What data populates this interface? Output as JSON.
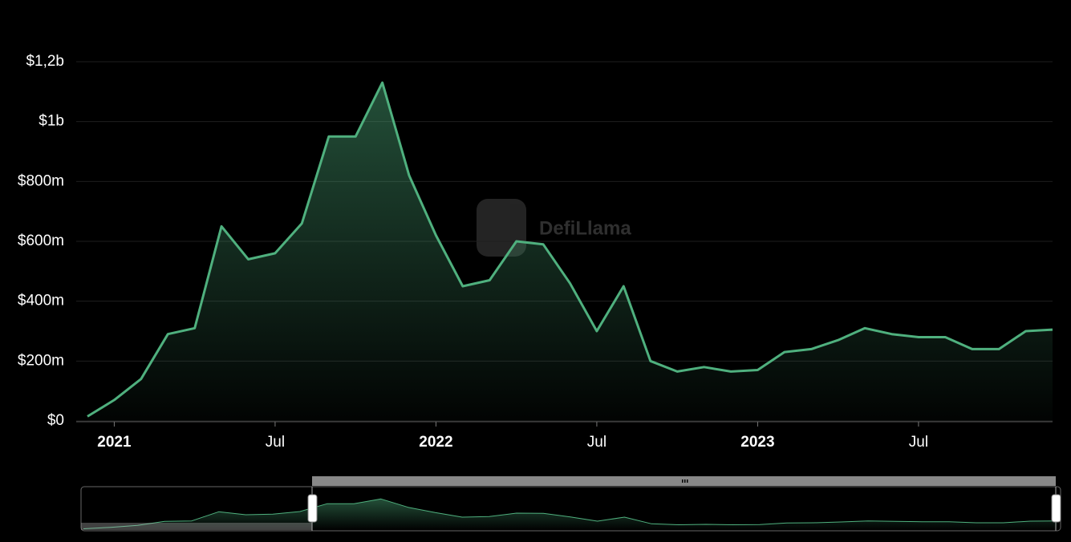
{
  "chart_data": {
    "type": "area",
    "watermark": "DefiLlama",
    "x": [
      "2020-12",
      "2021-01",
      "2021-02",
      "2021-03",
      "2021-04",
      "2021-05",
      "2021-06",
      "2021-07",
      "2021-08",
      "2021-09",
      "2021-10",
      "2021-11",
      "2021-12",
      "2022-01",
      "2022-02",
      "2022-03",
      "2022-04",
      "2022-05",
      "2022-06",
      "2022-07",
      "2022-08",
      "2022-09",
      "2022-10",
      "2022-11",
      "2022-12",
      "2023-01",
      "2023-02",
      "2023-03",
      "2023-04",
      "2023-05",
      "2023-06",
      "2023-07",
      "2023-08",
      "2023-09",
      "2023-10",
      "2023-11",
      "2023-12"
    ],
    "values": [
      15,
      70,
      140,
      290,
      310,
      650,
      540,
      560,
      660,
      950,
      950,
      1130,
      820,
      620,
      450,
      470,
      600,
      590,
      460,
      300,
      450,
      200,
      165,
      180,
      165,
      170,
      230,
      240,
      270,
      310,
      290,
      280,
      280,
      240,
      240,
      300,
      305
    ],
    "color": "#4fb07e",
    "xlim": [
      "2020-12",
      "2023-12"
    ],
    "xticks": [
      {
        "value": "2021-01",
        "label": "2021"
      },
      {
        "value": "2021-07",
        "label": "Jul"
      },
      {
        "value": "2022-01",
        "label": "2022"
      },
      {
        "value": "2022-07",
        "label": "Jul"
      },
      {
        "value": "2023-01",
        "label": "2023"
      },
      {
        "value": "2023-07",
        "label": "Jul"
      }
    ],
    "ylim": [
      0,
      1200
    ],
    "yticks": [
      {
        "value": 0,
        "label": "$0"
      },
      {
        "value": 200,
        "label": "$200m"
      },
      {
        "value": 400,
        "label": "$400m"
      },
      {
        "value": 600,
        "label": "$600m"
      },
      {
        "value": 800,
        "label": "$800m"
      },
      {
        "value": 1000,
        "label": "$1b"
      },
      {
        "value": 1200,
        "label": "$1,2b"
      }
    ],
    "grid": true
  }
}
